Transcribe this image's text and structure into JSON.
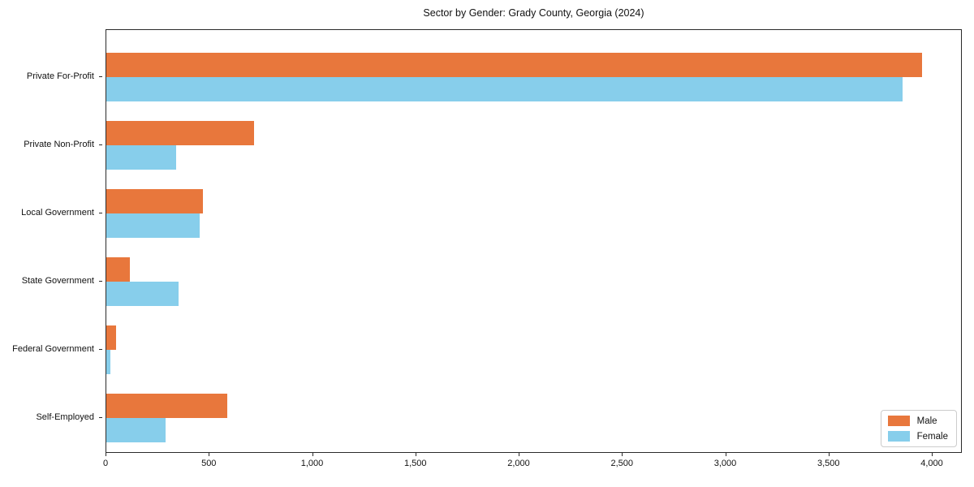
{
  "chart_data": {
    "type": "bar",
    "orientation": "horizontal",
    "title": "Sector by Gender: Grady County, Georgia (2024)",
    "categories": [
      "Private For-Profit",
      "Private Non-Profit",
      "Local Government",
      "State Government",
      "Federal Government",
      "Self-Employed"
    ],
    "series": [
      {
        "name": "Male",
        "color": "#e8773c",
        "values": [
          3950,
          715,
          468,
          114,
          47,
          585
        ]
      },
      {
        "name": "Female",
        "color": "#87ceeb",
        "values": [
          3855,
          338,
          452,
          350,
          20,
          287
        ]
      }
    ],
    "xlabel": "",
    "ylabel": "",
    "xlim": [
      0,
      4000
    ],
    "xticks": [
      0,
      500,
      1000,
      1500,
      2000,
      2500,
      3000,
      3500,
      4000
    ],
    "xtick_labels": [
      "0",
      "500",
      "1,000",
      "1,500",
      "2,000",
      "2,500",
      "3,000",
      "3,500",
      "4,000"
    ],
    "legend_position": "lower right",
    "grid": false,
    "colors": {
      "male": "#e8773c",
      "female": "#87ceeb",
      "axis": "#2a2a2a",
      "background": "#ffffff",
      "legend_border": "#cccccc"
    }
  }
}
